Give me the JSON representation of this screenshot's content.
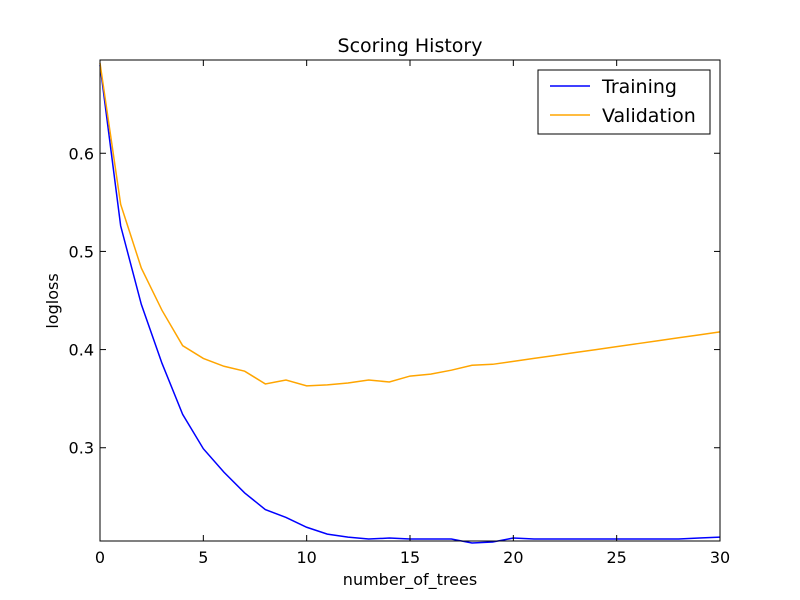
{
  "chart_data": {
    "type": "line",
    "title": "Scoring History",
    "xlabel": "number_of_trees",
    "ylabel": "logloss",
    "xlim": [
      0,
      30
    ],
    "ylim": [
      0.205,
      0.695
    ],
    "xticks": [
      0,
      5,
      10,
      15,
      20,
      25,
      30
    ],
    "yticks": [
      0.3,
      0.4,
      0.5,
      0.6
    ],
    "grid": false,
    "legend": "top-right",
    "series": [
      {
        "name": "Training",
        "color": "#0000ff",
        "x": [
          0,
          1,
          2,
          3,
          4,
          5,
          6,
          7,
          8,
          9,
          10,
          11,
          12,
          13,
          14,
          15,
          16,
          17,
          18,
          19,
          20,
          21,
          22,
          23,
          24,
          25,
          26,
          27,
          28,
          29,
          30
        ],
        "y": [
          0.69,
          0.526,
          0.446,
          0.386,
          0.334,
          0.299,
          0.275,
          0.254,
          0.237,
          0.229,
          0.219,
          0.212,
          0.209,
          0.207,
          0.208,
          0.207,
          0.207,
          0.207,
          0.203,
          0.204,
          0.208,
          0.207,
          0.207,
          0.207,
          0.207,
          0.207,
          0.207,
          0.207,
          0.207,
          0.208,
          0.209
        ]
      },
      {
        "name": "Validation",
        "color": "#ffa500",
        "x": [
          0,
          1,
          2,
          3,
          4,
          5,
          6,
          7,
          8,
          9,
          10,
          11,
          12,
          13,
          14,
          15,
          16,
          17,
          18,
          19,
          20,
          21,
          22,
          23,
          24,
          25,
          26,
          27,
          28,
          29,
          30
        ],
        "y": [
          0.692,
          0.548,
          0.483,
          0.44,
          0.404,
          0.391,
          0.383,
          0.378,
          0.365,
          0.369,
          0.363,
          0.364,
          0.366,
          0.369,
          0.367,
          0.373,
          0.375,
          0.379,
          0.384,
          0.385,
          0.388,
          0.391,
          0.394,
          0.397,
          0.4,
          0.403,
          0.406,
          0.409,
          0.412,
          0.415,
          0.418
        ]
      }
    ]
  }
}
